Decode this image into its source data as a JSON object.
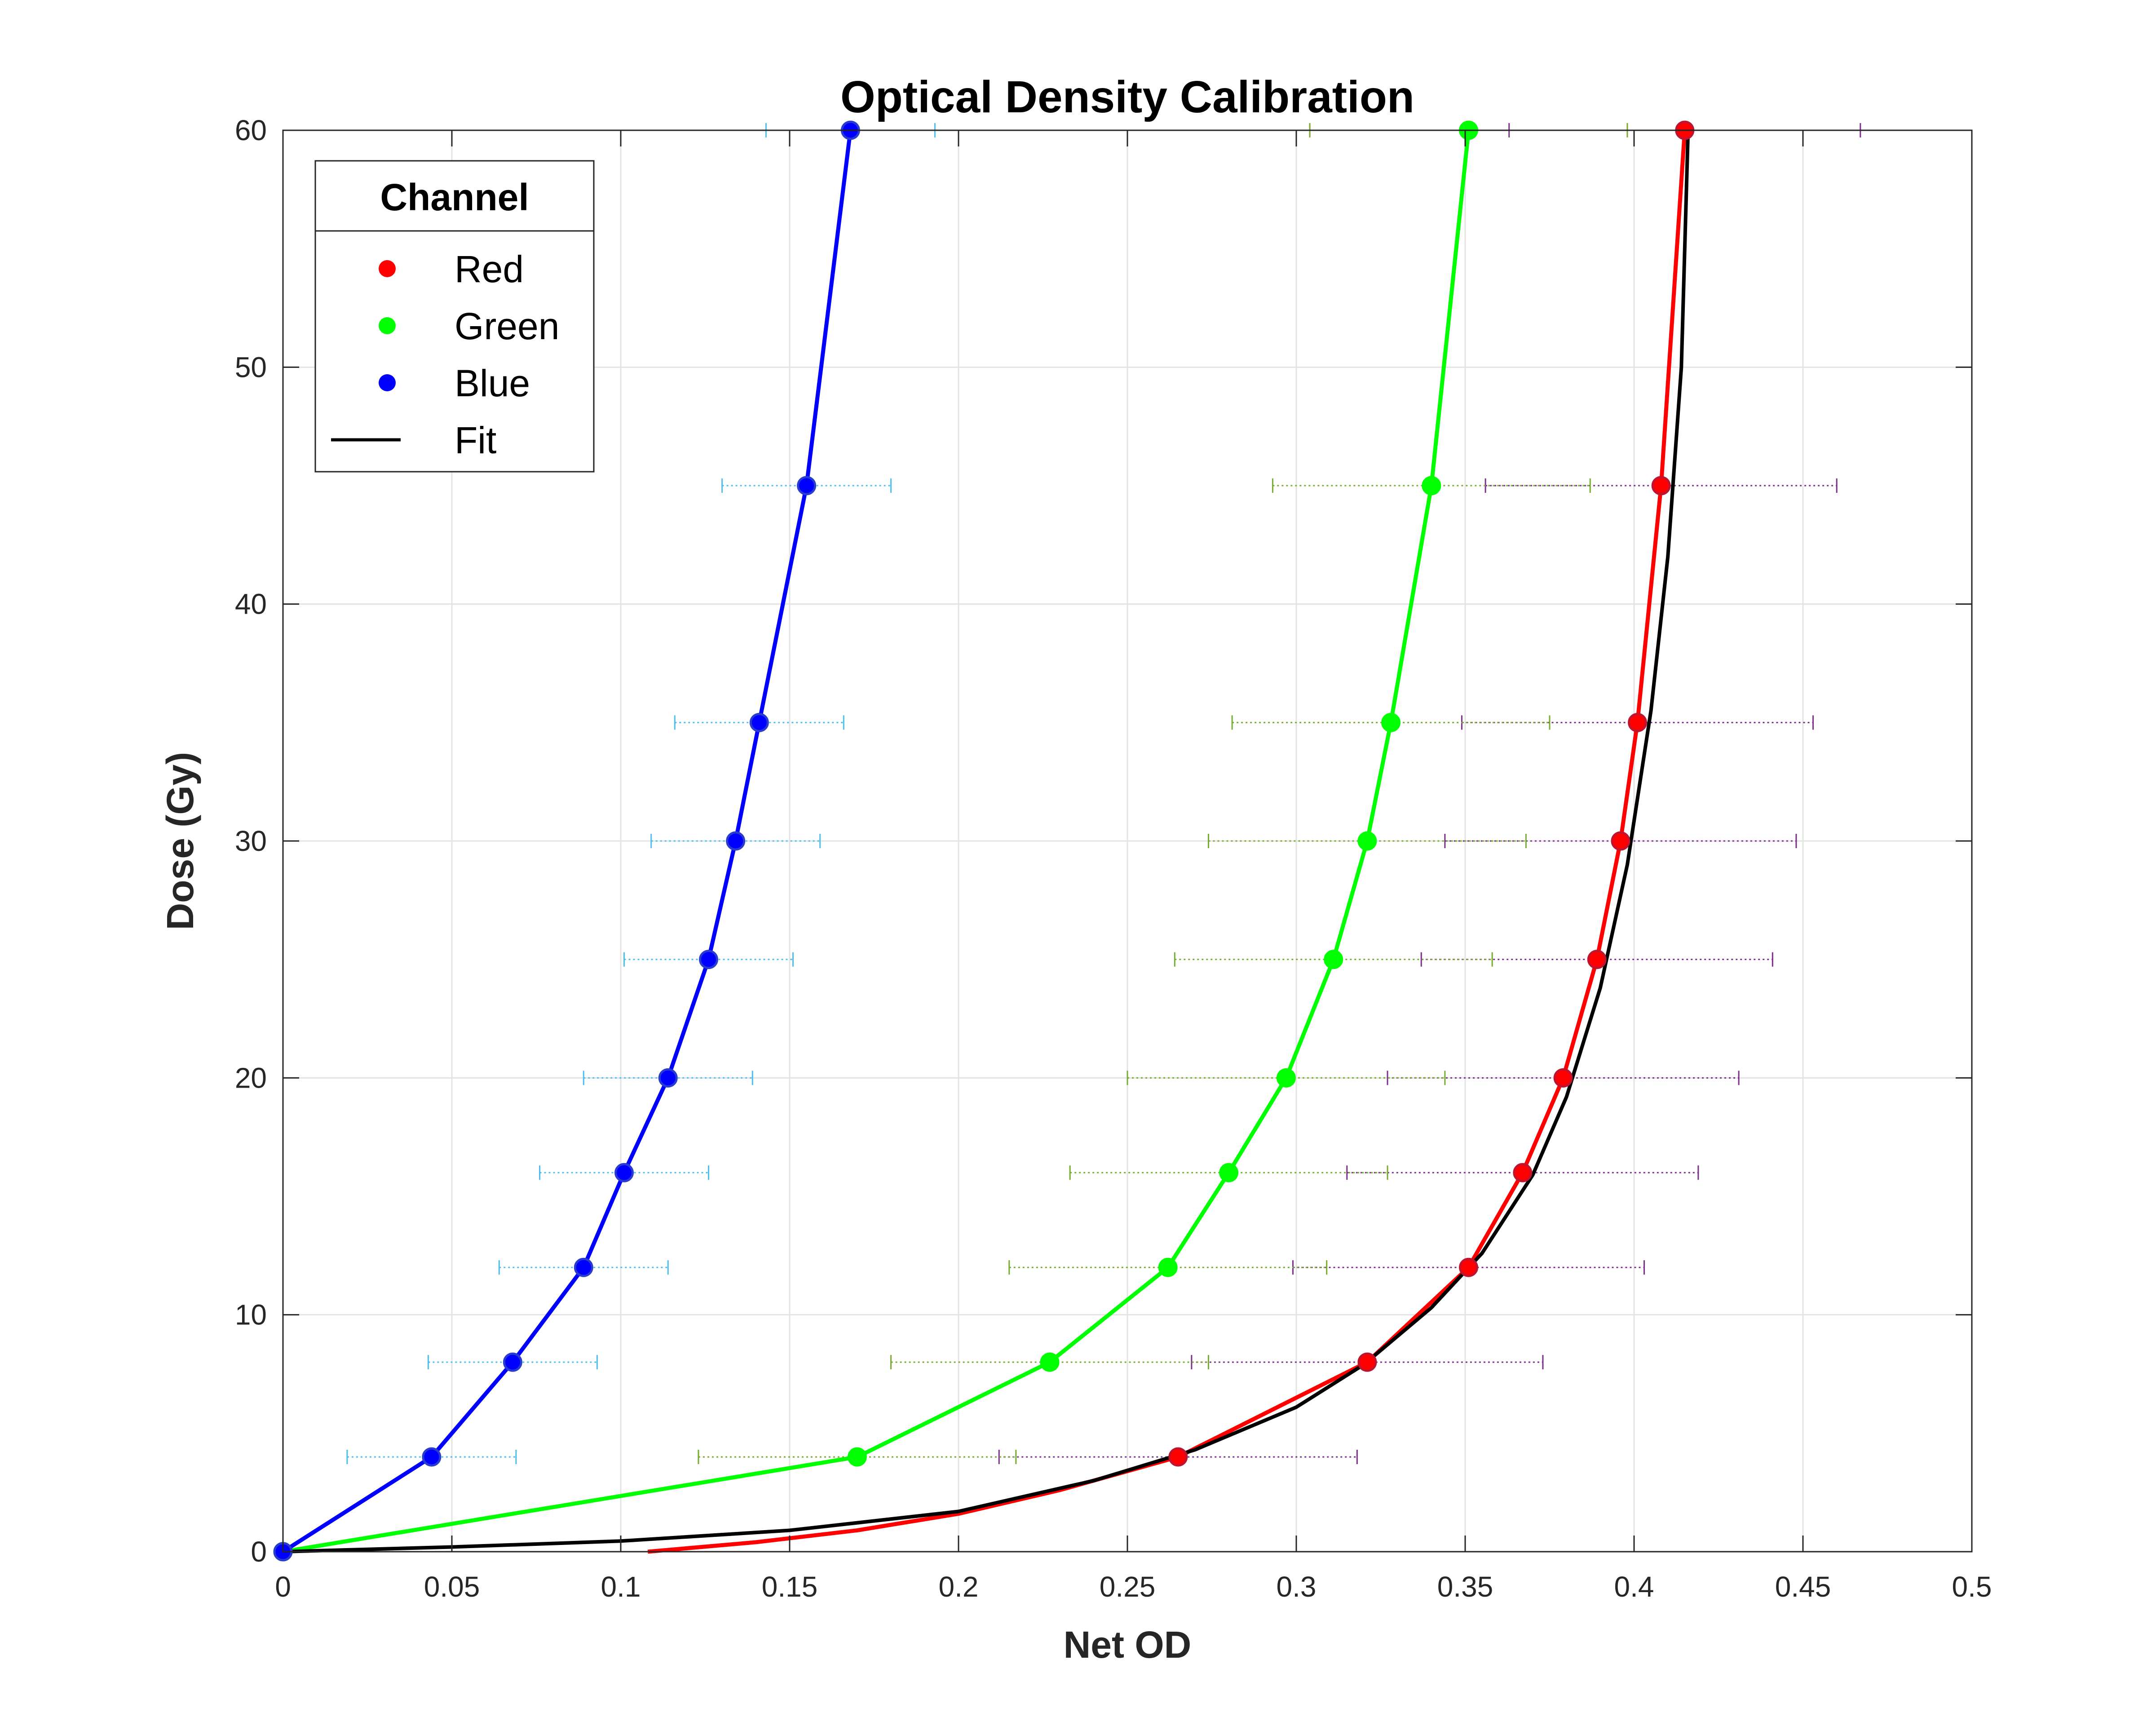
{
  "chart_data": {
    "type": "line",
    "title": "Optical Density Calibration",
    "xlabel": "Net OD",
    "ylabel": "Dose (Gy)",
    "xlim": [
      0,
      0.5
    ],
    "ylim": [
      0,
      60
    ],
    "xticks": [
      0,
      0.05,
      0.1,
      0.15,
      0.2,
      0.25,
      0.3,
      0.35,
      0.4,
      0.45,
      0.5
    ],
    "xtick_labels": [
      "0",
      "0.05",
      "0.1",
      "0.15",
      "0.2",
      "0.25",
      "0.3",
      "0.35",
      "0.4",
      "0.45",
      "0.5"
    ],
    "yticks": [
      0,
      10,
      20,
      30,
      40,
      50,
      60
    ],
    "ytick_labels": [
      "0",
      "10",
      "20",
      "30",
      "40",
      "50",
      "60"
    ],
    "grid": true,
    "legend": {
      "title": "Channel",
      "position": "top-left"
    },
    "dose": [
      0,
      4,
      8,
      12,
      16,
      20,
      25,
      30,
      35,
      45,
      60
    ],
    "series": [
      {
        "name": "Red",
        "color": "#ff0000",
        "errorbar_color": "#7e2f8e",
        "x": [
          0,
          0.265,
          0.321,
          0.351,
          0.367,
          0.379,
          0.389,
          0.396,
          0.401,
          0.408,
          0.415
        ],
        "y": [
          0,
          4,
          8,
          12,
          16,
          20,
          25,
          30,
          35,
          45,
          60
        ],
        "xerr": [
          0,
          0.053,
          0.052,
          0.052,
          0.052,
          0.052,
          0.052,
          0.052,
          0.052,
          0.052,
          0.052
        ]
      },
      {
        "name": "Green",
        "color": "#00ff00",
        "errorbar_color": "#77ac30",
        "x": [
          0,
          0.17,
          0.227,
          0.262,
          0.28,
          0.297,
          0.311,
          0.321,
          0.328,
          0.34,
          0.351
        ],
        "y": [
          0,
          4,
          8,
          12,
          16,
          20,
          25,
          30,
          35,
          45,
          60
        ],
        "xerr": [
          0,
          0.047,
          0.047,
          0.047,
          0.047,
          0.047,
          0.047,
          0.047,
          0.047,
          0.047,
          0.047
        ]
      },
      {
        "name": "Blue",
        "color": "#0000ff",
        "errorbar_color": "#4dbeee",
        "x": [
          0,
          0.044,
          0.068,
          0.089,
          0.101,
          0.114,
          0.126,
          0.134,
          0.141,
          0.155,
          0.168
        ],
        "y": [
          0,
          4,
          8,
          12,
          16,
          20,
          25,
          30,
          35,
          45,
          60
        ],
        "xerr": [
          0,
          0.025,
          0.025,
          0.025,
          0.025,
          0.025,
          0.025,
          0.025,
          0.025,
          0.025,
          0.025
        ]
      },
      {
        "name": "Fit",
        "color": "#000000",
        "style": "line-only",
        "x": [
          0,
          0.05,
          0.1,
          0.15,
          0.2,
          0.24,
          0.27,
          0.3,
          0.32,
          0.34,
          0.355,
          0.37,
          0.38,
          0.39,
          0.398,
          0.405,
          0.41,
          0.414,
          0.416
        ],
        "y": [
          0,
          0.2,
          0.45,
          0.9,
          1.7,
          3.0,
          4.3,
          6.1,
          7.9,
          10.3,
          12.6,
          15.9,
          19.2,
          23.8,
          29.0,
          35.5,
          42.0,
          50.0,
          60.0
        ]
      }
    ],
    "red_curve_extension": {
      "x": [
        0.108,
        0.14,
        0.17,
        0.2,
        0.23,
        0.265
      ],
      "y": [
        0,
        0.4,
        0.9,
        1.6,
        2.6,
        4
      ]
    }
  }
}
